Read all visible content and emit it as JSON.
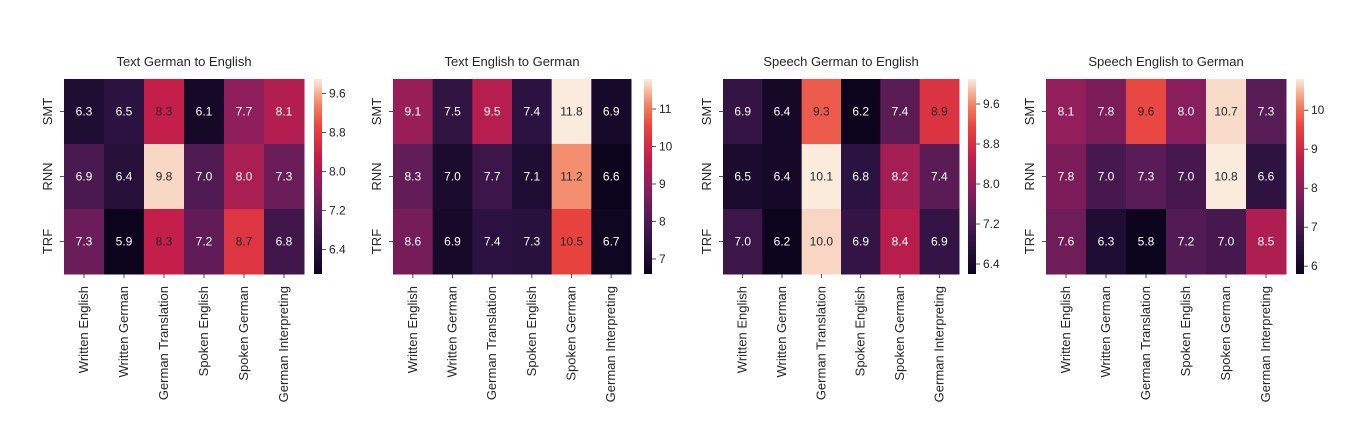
{
  "chart_data": [
    {
      "type": "heatmap",
      "title": "Text German to English",
      "rows": [
        "SMT",
        "RNN",
        "TRF"
      ],
      "columns": [
        "Written English",
        "Written German",
        "German Translation",
        "Spoken English",
        "Spoken German",
        "German Interpreting"
      ],
      "values": [
        [
          6.3,
          6.5,
          8.3,
          6.1,
          7.7,
          8.1
        ],
        [
          6.9,
          6.4,
          9.8,
          7.0,
          8.0,
          7.3
        ],
        [
          7.3,
          5.9,
          8.3,
          7.2,
          8.7,
          6.8
        ]
      ],
      "colorbar": {
        "min": 5.9,
        "max": 9.9,
        "ticks": [
          "6.4",
          "7.2",
          "8.0",
          "8.8",
          "9.6"
        ]
      }
    },
    {
      "type": "heatmap",
      "title": "Text English to German",
      "rows": [
        "SMT",
        "RNN",
        "TRF"
      ],
      "columns": [
        "Written English",
        "Written German",
        "German Translation",
        "Spoken English",
        "Spoken German",
        "German Interpreting"
      ],
      "values": [
        [
          9.1,
          7.5,
          9.5,
          7.4,
          11.8,
          6.9
        ],
        [
          8.3,
          7.0,
          7.7,
          7.1,
          11.2,
          6.6
        ],
        [
          8.6,
          6.9,
          7.4,
          7.3,
          10.5,
          6.7
        ]
      ],
      "colorbar": {
        "min": 6.6,
        "max": 11.8,
        "ticks": [
          "7",
          "8",
          "9",
          "10",
          "11"
        ]
      }
    },
    {
      "type": "heatmap",
      "title": "Speech German to English",
      "rows": [
        "SMT",
        "RNN",
        "TRF"
      ],
      "columns": [
        "Written English",
        "Written German",
        "German Translation",
        "Spoken English",
        "Spoken German",
        "German Interpreting"
      ],
      "values": [
        [
          6.9,
          6.4,
          9.3,
          6.2,
          7.4,
          8.9
        ],
        [
          6.5,
          6.4,
          10.1,
          6.8,
          8.2,
          7.4
        ],
        [
          7.0,
          6.2,
          10.0,
          6.9,
          8.4,
          6.9
        ]
      ],
      "colorbar": {
        "min": 6.2,
        "max": 10.1,
        "ticks": [
          "6.4",
          "7.2",
          "8.0",
          "8.8",
          "9.6"
        ]
      }
    },
    {
      "type": "heatmap",
      "title": "Speech English to German",
      "rows": [
        "SMT",
        "RNN",
        "TRF"
      ],
      "columns": [
        "Written English",
        "Written German",
        "German Translation",
        "Spoken English",
        "Spoken German",
        "German Interpreting"
      ],
      "values": [
        [
          8.1,
          7.8,
          9.6,
          8.0,
          10.7,
          7.3
        ],
        [
          7.8,
          7.0,
          7.3,
          7.0,
          10.8,
          6.6
        ],
        [
          7.6,
          6.3,
          5.8,
          7.2,
          7.0,
          8.5
        ]
      ],
      "colorbar": {
        "min": 5.8,
        "max": 10.8,
        "ticks": [
          "6",
          "7",
          "8",
          "9",
          "10"
        ]
      }
    }
  ]
}
